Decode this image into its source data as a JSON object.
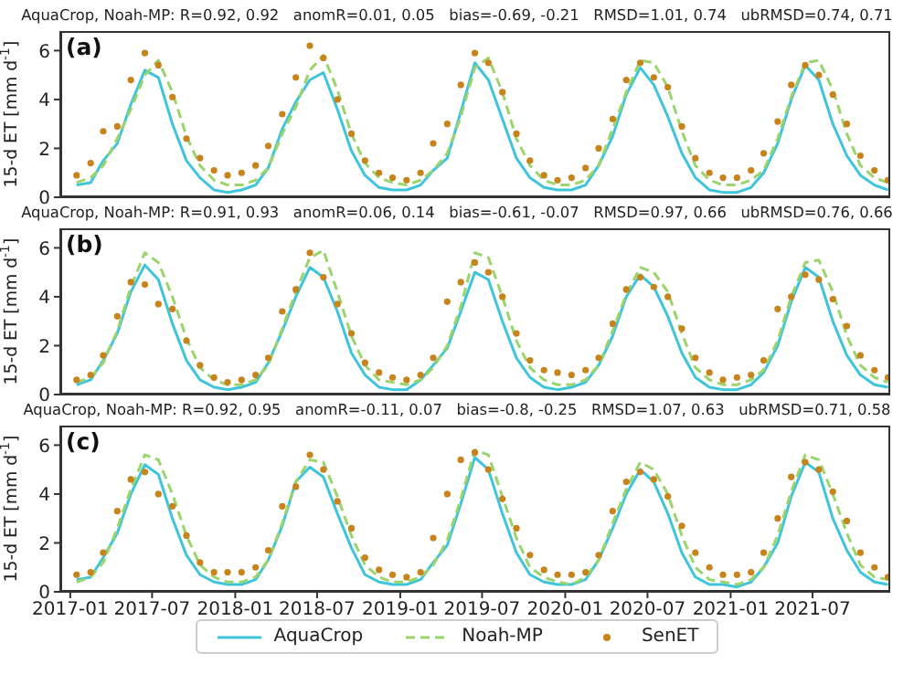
{
  "chart_data": [
    {
      "type": "line",
      "title": "AquaCrop, Noah-MP: R=0.92, 0.92   anomR=0.01, 0.05   bias=-0.69, -0.21   RMSD=1.01, 0.74   ubRMSD=0.74, 0.71",
      "ylabel": "15-d ET [mm d$^{-1}$]",
      "annotations": [
        "(a)"
      ],
      "tick_labels": "y",
      "legend": "bottom",
      "xlim": [
        "2016-12-10",
        "2021-12-20"
      ],
      "xticks": [
        "2017-01",
        "2017-07",
        "2018-01",
        "2018-07",
        "2019-01",
        "2019-07",
        "2020-01",
        "2020-07",
        "2021-01",
        "2021-07"
      ],
      "ylim": [
        0,
        6.8
      ],
      "yticks": [
        0,
        2,
        4,
        6
      ],
      "grid": false,
      "x": [
        "2017-01-15",
        "2017-02-15",
        "2017-03-15",
        "2017-04-15",
        "2017-05-15",
        "2017-06-15",
        "2017-07-15",
        "2017-08-15",
        "2017-09-15",
        "2017-10-15",
        "2017-11-15",
        "2017-12-15",
        "2018-01-15",
        "2018-02-15",
        "2018-03-15",
        "2018-04-15",
        "2018-05-15",
        "2018-06-15",
        "2018-07-15",
        "2018-08-15",
        "2018-09-15",
        "2018-10-15",
        "2018-11-15",
        "2018-12-15",
        "2019-01-15",
        "2019-02-15",
        "2019-03-15",
        "2019-04-15",
        "2019-05-15",
        "2019-06-15",
        "2019-07-15",
        "2019-08-15",
        "2019-09-15",
        "2019-10-15",
        "2019-11-15",
        "2019-12-15",
        "2020-01-15",
        "2020-02-15",
        "2020-03-15",
        "2020-04-15",
        "2020-05-15",
        "2020-06-15",
        "2020-07-15",
        "2020-08-15",
        "2020-09-15",
        "2020-10-15",
        "2020-11-15",
        "2020-12-15",
        "2021-01-15",
        "2021-02-15",
        "2021-03-15",
        "2021-04-15",
        "2021-05-15",
        "2021-06-15",
        "2021-07-15",
        "2021-08-15",
        "2021-09-15",
        "2021-10-15",
        "2021-11-15",
        "2021-12-15"
      ],
      "series": [
        {
          "name": "AquaCrop",
          "type": "line",
          "line_style": "solid",
          "marker": "none",
          "color": "#3ec5dc",
          "values": [
            0.5,
            0.6,
            1.5,
            2.2,
            3.8,
            5.2,
            4.9,
            3.0,
            1.5,
            0.8,
            0.3,
            0.2,
            0.3,
            0.5,
            1.2,
            2.8,
            3.9,
            4.8,
            5.1,
            3.6,
            1.9,
            0.9,
            0.4,
            0.3,
            0.3,
            0.5,
            1.1,
            1.6,
            3.5,
            5.5,
            4.8,
            3.2,
            1.6,
            0.8,
            0.4,
            0.3,
            0.3,
            0.5,
            1.3,
            2.5,
            4.2,
            5.3,
            4.6,
            3.3,
            1.8,
            0.8,
            0.3,
            0.2,
            0.2,
            0.4,
            1.0,
            2.2,
            4.0,
            5.4,
            4.8,
            3.0,
            1.7,
            0.9,
            0.5,
            0.3
          ]
        },
        {
          "name": "Noah-MP",
          "type": "line",
          "line_style": "dashed",
          "marker": "none",
          "color": "#9ad46b",
          "values": [
            0.6,
            0.8,
            1.3,
            2.4,
            3.6,
            5.0,
            5.6,
            4.3,
            2.5,
            1.3,
            0.7,
            0.5,
            0.5,
            0.7,
            1.2,
            2.6,
            3.7,
            5.2,
            5.8,
            4.4,
            2.6,
            1.4,
            0.8,
            0.6,
            0.5,
            0.7,
            1.1,
            1.8,
            3.3,
            5.3,
            5.7,
            4.3,
            2.4,
            1.3,
            0.7,
            0.5,
            0.5,
            0.7,
            1.3,
            2.8,
            4.3,
            5.6,
            5.5,
            4.5,
            2.7,
            1.3,
            0.7,
            0.5,
            0.5,
            0.7,
            1.1,
            2.4,
            4.1,
            5.5,
            5.6,
            4.4,
            2.6,
            1.3,
            0.8,
            0.6
          ]
        },
        {
          "name": "SenET",
          "type": "scatter",
          "marker": "circle",
          "color": "#c8841c",
          "values": [
            0.9,
            1.4,
            2.7,
            2.9,
            4.8,
            5.9,
            5.4,
            4.1,
            2.4,
            1.6,
            1.1,
            0.9,
            1.0,
            1.3,
            2.1,
            3.4,
            4.9,
            6.2,
            5.7,
            4.0,
            2.6,
            1.5,
            1.0,
            0.8,
            0.7,
            1.0,
            2.2,
            3.0,
            4.6,
            5.9,
            5.5,
            4.3,
            2.6,
            1.5,
            0.9,
            0.7,
            0.8,
            1.2,
            2.0,
            3.2,
            4.8,
            5.5,
            4.9,
            4.5,
            2.9,
            1.6,
            1.0,
            0.8,
            0.8,
            1.1,
            1.8,
            3.1,
            4.6,
            5.4,
            5.0,
            4.2,
            3.0,
            1.7,
            1.1,
            0.7
          ]
        }
      ]
    },
    {
      "type": "line",
      "title": "AquaCrop, Noah-MP: R=0.91, 0.93   anomR=0.06, 0.14   bias=-0.61, -0.07   RMSD=0.97, 0.66   ubRMSD=0.76, 0.66",
      "ylabel": "15-d ET [mm d$^{-1}$]",
      "annotations": [
        "(b)"
      ],
      "tick_labels": "y",
      "xlim": [
        "2016-12-10",
        "2021-12-20"
      ],
      "xticks": [
        "2017-01",
        "2017-07",
        "2018-01",
        "2018-07",
        "2019-01",
        "2019-07",
        "2020-01",
        "2020-07",
        "2021-01",
        "2021-07"
      ],
      "ylim": [
        0,
        6.8
      ],
      "yticks": [
        0,
        2,
        4,
        6
      ],
      "grid": false,
      "x": [
        "2017-01-15",
        "2017-02-15",
        "2017-03-15",
        "2017-04-15",
        "2017-05-15",
        "2017-06-15",
        "2017-07-15",
        "2017-08-15",
        "2017-09-15",
        "2017-10-15",
        "2017-11-15",
        "2017-12-15",
        "2018-01-15",
        "2018-02-15",
        "2018-03-15",
        "2018-04-15",
        "2018-05-15",
        "2018-06-15",
        "2018-07-15",
        "2018-08-15",
        "2018-09-15",
        "2018-10-15",
        "2018-11-15",
        "2018-12-15",
        "2019-01-15",
        "2019-02-15",
        "2019-03-15",
        "2019-04-15",
        "2019-05-15",
        "2019-06-15",
        "2019-07-15",
        "2019-08-15",
        "2019-09-15",
        "2019-10-15",
        "2019-11-15",
        "2019-12-15",
        "2020-01-15",
        "2020-02-15",
        "2020-03-15",
        "2020-04-15",
        "2020-05-15",
        "2020-06-15",
        "2020-07-15",
        "2020-08-15",
        "2020-09-15",
        "2020-10-15",
        "2020-11-15",
        "2020-12-15",
        "2021-01-15",
        "2021-02-15",
        "2021-03-15",
        "2021-04-15",
        "2021-05-15",
        "2021-06-15",
        "2021-07-15",
        "2021-08-15",
        "2021-09-15",
        "2021-10-15",
        "2021-11-15",
        "2021-12-15"
      ],
      "series": [
        {
          "type": "line",
          "line_style": "solid",
          "marker": "none",
          "color": "#3ec5dc",
          "values": [
            0.4,
            0.6,
            1.4,
            2.5,
            4.2,
            5.3,
            4.7,
            2.9,
            1.4,
            0.6,
            0.3,
            0.2,
            0.3,
            0.5,
            1.3,
            2.6,
            4.0,
            5.2,
            4.8,
            3.4,
            1.7,
            0.8,
            0.3,
            0.2,
            0.2,
            0.6,
            1.2,
            1.9,
            3.4,
            5.0,
            4.7,
            3.0,
            1.5,
            0.7,
            0.3,
            0.2,
            0.3,
            0.5,
            1.2,
            2.4,
            4.0,
            4.9,
            4.4,
            3.2,
            1.7,
            0.7,
            0.3,
            0.2,
            0.2,
            0.4,
            0.9,
            2.0,
            3.8,
            5.2,
            4.8,
            3.0,
            1.6,
            0.8,
            0.4,
            0.3
          ]
        },
        {
          "type": "line",
          "line_style": "dashed",
          "marker": "none",
          "color": "#9ad46b",
          "values": [
            0.5,
            0.7,
            1.3,
            2.6,
            4.4,
            5.8,
            5.4,
            4.0,
            2.3,
            1.1,
            0.6,
            0.4,
            0.4,
            0.6,
            1.2,
            2.7,
            4.2,
            5.6,
            5.9,
            4.2,
            2.4,
            1.2,
            0.6,
            0.5,
            0.4,
            0.6,
            1.1,
            2.0,
            3.6,
            5.8,
            5.6,
            4.0,
            2.2,
            1.1,
            0.6,
            0.4,
            0.4,
            0.6,
            1.2,
            2.6,
            4.1,
            5.2,
            5.0,
            4.2,
            2.5,
            1.1,
            0.6,
            0.4,
            0.4,
            0.6,
            1.0,
            2.2,
            4.0,
            5.4,
            5.5,
            4.2,
            2.4,
            1.2,
            0.7,
            0.5
          ]
        },
        {
          "type": "scatter",
          "marker": "circle",
          "color": "#c8841c",
          "values": [
            0.6,
            0.8,
            1.6,
            3.2,
            4.6,
            4.5,
            3.7,
            3.5,
            2.2,
            1.2,
            0.7,
            0.5,
            0.6,
            0.8,
            1.5,
            3.4,
            4.3,
            5.8,
            4.8,
            3.7,
            2.5,
            1.3,
            0.9,
            0.7,
            0.6,
            0.8,
            1.5,
            3.8,
            4.6,
            5.4,
            5.0,
            4.0,
            2.5,
            1.4,
            1.0,
            0.9,
            0.8,
            1.0,
            1.5,
            2.9,
            4.3,
            4.8,
            4.4,
            4.0,
            2.7,
            1.5,
            0.9,
            0.6,
            0.7,
            0.8,
            1.4,
            3.5,
            4.0,
            4.9,
            4.7,
            3.9,
            2.8,
            1.6,
            1.0,
            0.7
          ]
        }
      ]
    },
    {
      "type": "line",
      "title": "AquaCrop, Noah-MP: R=0.92, 0.95   anomR=-0.11, 0.07   bias=-0.8, -0.25   RMSD=1.07, 0.63   ubRMSD=0.71, 0.58",
      "ylabel": "15-d ET [mm d$^{-1}$]",
      "annotations": [
        "(c)"
      ],
      "xlim": [
        "2016-12-10",
        "2021-12-20"
      ],
      "xticks": [
        "2017-01",
        "2017-07",
        "2018-01",
        "2018-07",
        "2019-01",
        "2019-07",
        "2020-01",
        "2020-07",
        "2021-01",
        "2021-07"
      ],
      "ylim": [
        0,
        6.8
      ],
      "yticks": [
        0,
        2,
        4,
        6
      ],
      "grid": false,
      "x": [
        "2017-01-15",
        "2017-02-15",
        "2017-03-15",
        "2017-04-15",
        "2017-05-15",
        "2017-06-15",
        "2017-07-15",
        "2017-08-15",
        "2017-09-15",
        "2017-10-15",
        "2017-11-15",
        "2017-12-15",
        "2018-01-15",
        "2018-02-15",
        "2018-03-15",
        "2018-04-15",
        "2018-05-15",
        "2018-06-15",
        "2018-07-15",
        "2018-08-15",
        "2018-09-15",
        "2018-10-15",
        "2018-11-15",
        "2018-12-15",
        "2019-01-15",
        "2019-02-15",
        "2019-03-15",
        "2019-04-15",
        "2019-05-15",
        "2019-06-15",
        "2019-07-15",
        "2019-08-15",
        "2019-09-15",
        "2019-10-15",
        "2019-11-15",
        "2019-12-15",
        "2020-01-15",
        "2020-02-15",
        "2020-03-15",
        "2020-04-15",
        "2020-05-15",
        "2020-06-15",
        "2020-07-15",
        "2020-08-15",
        "2020-09-15",
        "2020-10-15",
        "2020-11-15",
        "2020-12-15",
        "2021-01-15",
        "2021-02-15",
        "2021-03-15",
        "2021-04-15",
        "2021-05-15",
        "2021-06-15",
        "2021-07-15",
        "2021-08-15",
        "2021-09-15",
        "2021-10-15",
        "2021-11-15",
        "2021-12-15"
      ],
      "series": [
        {
          "type": "line",
          "line_style": "solid",
          "marker": "none",
          "color": "#3ec5dc",
          "values": [
            0.5,
            0.6,
            1.4,
            2.4,
            4.0,
            5.2,
            4.8,
            3.0,
            1.5,
            0.7,
            0.4,
            0.3,
            0.3,
            0.5,
            1.3,
            2.7,
            4.5,
            5.1,
            4.7,
            3.2,
            1.8,
            0.7,
            0.4,
            0.3,
            0.3,
            0.5,
            1.2,
            1.9,
            3.6,
            5.5,
            5.0,
            3.2,
            1.6,
            0.7,
            0.4,
            0.3,
            0.3,
            0.5,
            1.3,
            2.6,
            4.0,
            5.0,
            4.5,
            3.2,
            1.6,
            0.6,
            0.3,
            0.3,
            0.2,
            0.4,
            1.0,
            2.0,
            3.9,
            5.3,
            4.9,
            3.0,
            1.7,
            0.8,
            0.4,
            0.3
          ]
        },
        {
          "type": "line",
          "line_style": "dashed",
          "marker": "none",
          "color": "#9ad46b",
          "values": [
            0.4,
            0.6,
            1.2,
            2.6,
            4.2,
            5.6,
            5.4,
            4.0,
            2.3,
            1.1,
            0.6,
            0.4,
            0.4,
            0.6,
            1.3,
            2.8,
            4.5,
            5.4,
            5.3,
            3.9,
            2.3,
            1.1,
            0.6,
            0.4,
            0.4,
            0.6,
            1.1,
            2.1,
            3.8,
            5.8,
            5.6,
            3.9,
            2.2,
            1.0,
            0.6,
            0.4,
            0.3,
            0.6,
            1.3,
            2.8,
            4.2,
            5.3,
            5.0,
            4.0,
            2.3,
            1.0,
            0.5,
            0.4,
            0.3,
            0.5,
            1.0,
            2.3,
            4.1,
            5.6,
            5.4,
            4.0,
            2.4,
            1.1,
            0.6,
            0.5
          ]
        },
        {
          "type": "scatter",
          "marker": "circle",
          "color": "#c8841c",
          "values": [
            0.7,
            0.8,
            1.6,
            3.3,
            4.6,
            4.9,
            4.0,
            3.5,
            2.3,
            1.2,
            0.8,
            0.8,
            0.8,
            1.0,
            1.7,
            3.5,
            4.3,
            5.6,
            5.0,
            3.7,
            2.6,
            1.4,
            0.9,
            0.7,
            0.6,
            0.8,
            2.2,
            4.0,
            5.4,
            5.7,
            5.0,
            3.8,
            2.6,
            1.5,
            0.9,
            0.7,
            0.7,
            0.8,
            1.5,
            3.3,
            4.5,
            4.9,
            4.6,
            3.9,
            2.7,
            1.6,
            1.0,
            0.7,
            0.7,
            0.8,
            1.6,
            3.0,
            4.7,
            5.3,
            5.0,
            4.1,
            2.9,
            1.6,
            1.0,
            0.6
          ]
        }
      ]
    }
  ]
}
